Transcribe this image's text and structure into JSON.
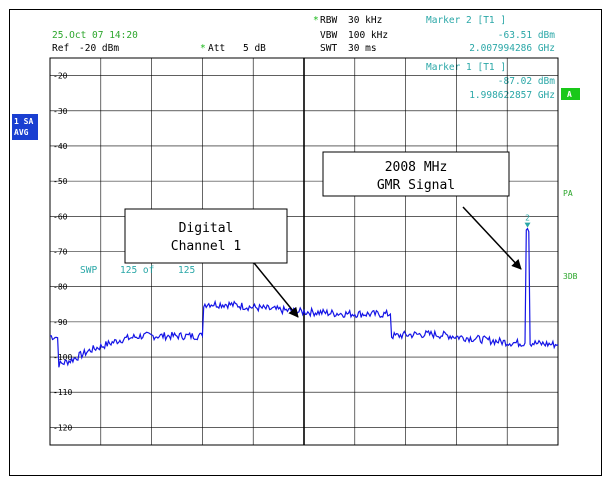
{
  "header": {
    "date": "25.Oct 07 14:20",
    "ref_label": "Ref",
    "ref_value": "-20 dBm",
    "att_label": "Att",
    "att_value": "5 dB",
    "rbw_label": "RBW",
    "rbw_value": "30 kHz",
    "vbw_label": "VBW",
    "vbw_value": "100 kHz",
    "swt_label": "SWT",
    "swt_value": "30 ms"
  },
  "markers": {
    "m2_title": "Marker 2 [T1 ]",
    "m2_level": "-63.51 dBm",
    "m2_freq": "2.007994286 GHz",
    "m1_title": "Marker 1 [T1 ]",
    "m1_level": "-87.02 dBm",
    "m1_freq": "1.998622857 GHz",
    "m2_label": "2"
  },
  "side": {
    "sa_line1": "1 SA",
    "sa_line2": "AVG",
    "a_badge": "A",
    "pa": "PA",
    "db3": "3DB"
  },
  "sweep": {
    "label": "SWP",
    "value": "125 of",
    "total": "125"
  },
  "annotations": {
    "digital_line1": "Digital",
    "digital_line2": "Channel 1",
    "gmr_line1": "2008 MHz",
    "gmr_line2": "GMR Signal"
  },
  "colors": {
    "trace": "#1414e6",
    "info_text": "#2aa7a7",
    "green_text": "#2ca62c",
    "badge_bg": "#1a3fd1",
    "badge_green": "#19c819",
    "grid": "#000000"
  },
  "chart_data": {
    "type": "line",
    "ylim": [
      -125,
      -15
    ],
    "y_ticks": [
      "-20",
      "-30",
      "-40",
      "-50",
      "-60",
      "-70",
      "-80",
      "-90",
      "-100",
      "-110",
      "-120"
    ],
    "x_divisions": 10,
    "series": [
      {
        "x_div": [
          0.0,
          0.15,
          0.2,
          0.4,
          0.6,
          0.8,
          1.0,
          1.2,
          1.4,
          1.6,
          1.8,
          2.0,
          2.2,
          2.4,
          2.6,
          2.8,
          3.0,
          3.05,
          3.1,
          3.3,
          3.5,
          3.7,
          3.9,
          4.1,
          4.3,
          4.5,
          4.7,
          4.9,
          5.1,
          5.3,
          5.5,
          5.7,
          5.9,
          6.1,
          6.3,
          6.5,
          6.7,
          6.75,
          6.8,
          7.0,
          7.2,
          7.4,
          7.6,
          7.8,
          8.0,
          8.2,
          8.4,
          8.6,
          8.8,
          9.0,
          9.2,
          9.35,
          9.4,
          9.5,
          9.6,
          9.8,
          10.0
        ],
        "y_dbm": [
          -94,
          -94.5,
          -102,
          -101,
          -99.5,
          -98,
          -97,
          -96,
          -95,
          -94.5,
          -94,
          -94,
          -94,
          -94,
          -94,
          -94,
          -94,
          -85,
          -84.8,
          -85,
          -85,
          -85.3,
          -85.7,
          -86,
          -86.3,
          -86.6,
          -86.8,
          -87.1,
          -87.2,
          -87.3,
          -87.5,
          -87.6,
          -87.7,
          -87.7,
          -87.8,
          -87.8,
          -87.8,
          -94,
          -94,
          -93.7,
          -93.6,
          -93.5,
          -93.6,
          -93.8,
          -94.2,
          -94.5,
          -94.8,
          -95.2,
          -95.5,
          -95.8,
          -96,
          -96,
          -63.5,
          -96,
          -96.2,
          -96.3,
          -96.5
        ]
      }
    ]
  }
}
